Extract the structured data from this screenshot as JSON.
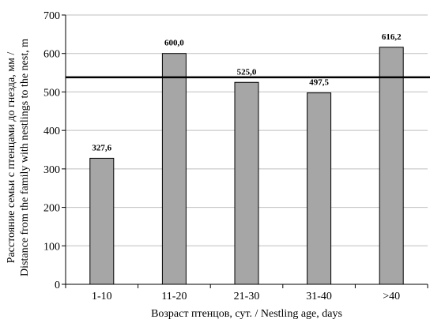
{
  "chart_data": {
    "type": "bar",
    "categories": [
      "1-10",
      "11-20",
      "21-30",
      "31-40",
      ">40"
    ],
    "values": [
      327.6,
      600.0,
      525.0,
      497.5,
      616.2
    ],
    "data_labels": [
      "327,6",
      "600,0",
      "525,0",
      "497,5",
      "616,2"
    ],
    "reference_line": 538,
    "xlabel": "Возраст птенцов, сут.  / Nestling age, days",
    "ylabel_line1": "Расстояние семьи с птенцами до гнезда, мм /",
    "ylabel_line2": "Distance from the family with nestlings to the nest, m",
    "ylim": [
      0,
      700
    ],
    "yticks": [
      0,
      100,
      200,
      300,
      400,
      500,
      600,
      700
    ],
    "grid": "horizontal",
    "colors": {
      "bar_fill": "#a6a6a6",
      "bar_stroke": "#000000",
      "grid": "#bfbfbf",
      "reference_line": "#000000"
    }
  }
}
